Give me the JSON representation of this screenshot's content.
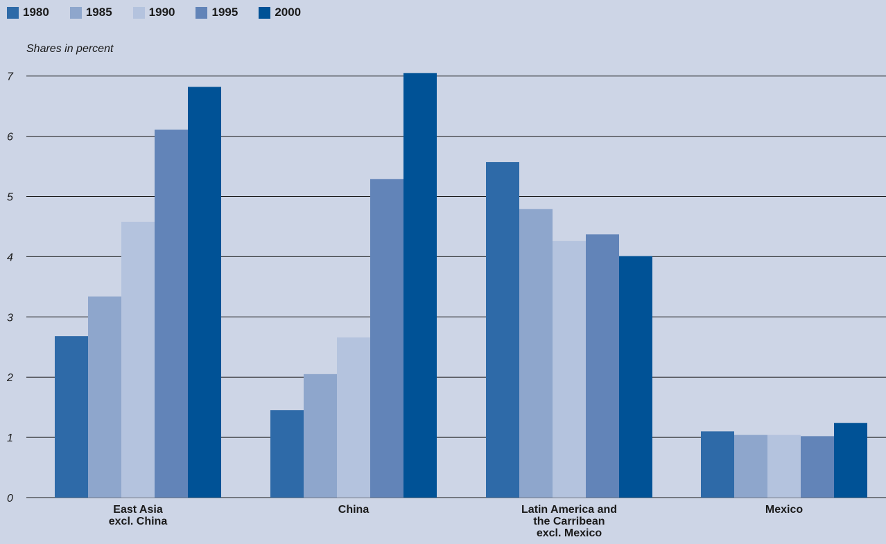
{
  "chart_data": {
    "type": "bar",
    "title": "",
    "ylabel": "Shares in percent",
    "xlabel": "",
    "ylim": [
      0,
      7
    ],
    "yticks": [
      0,
      1,
      2,
      3,
      4,
      5,
      6,
      7
    ],
    "grid": true,
    "legend_position": "top-left",
    "categories": [
      [
        "East Asia",
        "excl. China"
      ],
      [
        "China"
      ],
      [
        "Latin America and",
        "the Carribean",
        "excl. Mexico"
      ],
      [
        "Mexico"
      ]
    ],
    "series": [
      {
        "name": "1980",
        "color": "#2e6aa8",
        "values": [
          2.68,
          1.45,
          5.57,
          1.1
        ]
      },
      {
        "name": "1985",
        "color": "#8ea6cc",
        "values": [
          3.34,
          2.05,
          4.79,
          1.04
        ]
      },
      {
        "name": "1990",
        "color": "#b4c3de",
        "values": [
          4.58,
          2.66,
          4.26,
          1.04
        ]
      },
      {
        "name": "1995",
        "color": "#6284b8",
        "values": [
          6.11,
          5.29,
          4.37,
          1.02
        ]
      },
      {
        "name": "2000",
        "color": "#005296",
        "values": [
          6.82,
          7.05,
          4.01,
          1.24
        ]
      }
    ]
  }
}
